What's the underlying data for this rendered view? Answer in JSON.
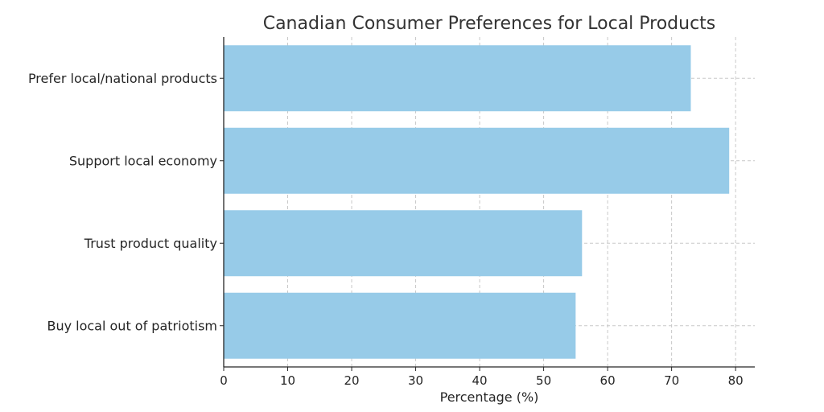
{
  "chart_data": {
    "type": "bar",
    "orientation": "horizontal",
    "title": "Canadian Consumer Preferences for Local Products",
    "xlabel": "Percentage (%)",
    "ylabel": "",
    "categories": [
      "Prefer local/national products",
      "Support local economy",
      "Trust product quality",
      "Buy local out of patriotism"
    ],
    "values": [
      73,
      79,
      56,
      55
    ],
    "xlim": [
      0,
      83
    ],
    "xticks": [
      0,
      10,
      20,
      30,
      40,
      50,
      60,
      70,
      80
    ],
    "grid": true,
    "bar_color": "#97cbe8"
  }
}
